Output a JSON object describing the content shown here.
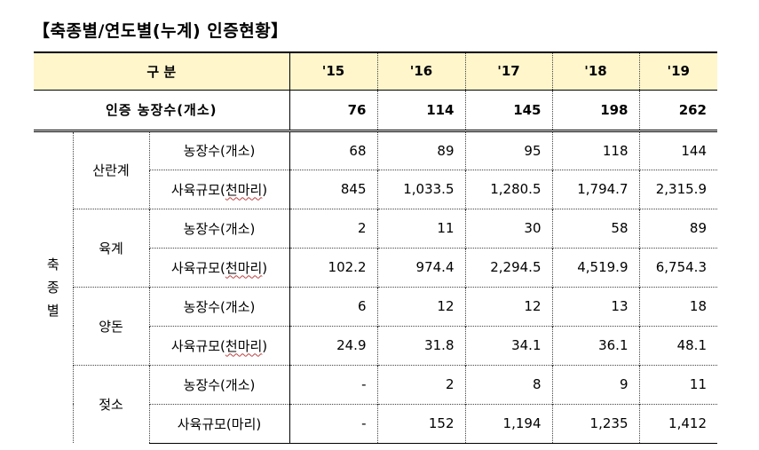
{
  "title": "【축종별/연도별(누계) 인증현황】",
  "header": {
    "category": "구 분",
    "years": [
      "'15",
      "'16",
      "'17",
      "'18",
      "'19"
    ]
  },
  "total": {
    "label": "인증  농장수(개소)",
    "values": [
      "76",
      "114",
      "145",
      "198",
      "262"
    ]
  },
  "group_label_chars": [
    "축",
    "종",
    "별"
  ],
  "rows": [
    {
      "species": "산란계",
      "metric": "농장수(개소)",
      "values": [
        "68",
        "89",
        "95",
        "118",
        "144"
      ]
    },
    {
      "species": "",
      "metric": "사육규모(천마리)",
      "values": [
        "845",
        "1,033.5",
        "1,280.5",
        "1,794.7",
        "2,315.9"
      ]
    },
    {
      "species": "육계",
      "metric": "농장수(개소)",
      "values": [
        "2",
        "11",
        "30",
        "58",
        "89"
      ]
    },
    {
      "species": "",
      "metric": "사육규모(천마리)",
      "values": [
        "102.2",
        "974.4",
        "2,294.5",
        "4,519.9",
        "6,754.3"
      ]
    },
    {
      "species": "양돈",
      "metric": "농장수(개소)",
      "values": [
        "6",
        "12",
        "12",
        "13",
        "18"
      ]
    },
    {
      "species": "",
      "metric": "사육규모(천마리)",
      "values": [
        "24.9",
        "31.8",
        "34.1",
        "36.1",
        "48.1"
      ]
    },
    {
      "species": "젖소",
      "metric": "농장수(개소)",
      "values": [
        "-",
        "2",
        "8",
        "9",
        "11"
      ]
    },
    {
      "species": "",
      "metric": "사육규모(마리)",
      "values": [
        "-",
        "152",
        "1,194",
        "1,235",
        "1,412"
      ]
    }
  ]
}
